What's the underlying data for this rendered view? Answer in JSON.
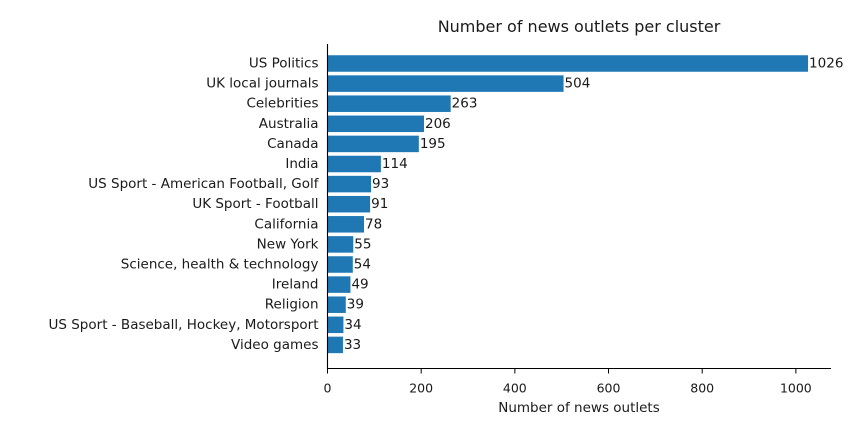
{
  "chart_data": {
    "type": "bar",
    "orientation": "horizontal",
    "title": "Number of news outlets per cluster",
    "xlabel": "Number of news outlets",
    "ylabel": "",
    "categories": [
      "US Politics",
      "UK local journals",
      "Celebrities",
      "Australia",
      "Canada",
      "India",
      "US Sport - American Football, Golf",
      "UK Sport - Football",
      "California",
      "New York",
      "Science, health & technology",
      "Ireland",
      "Religion",
      "US Sport - Baseball, Hockey, Motorsport",
      "Video games"
    ],
    "values": [
      1026,
      504,
      263,
      206,
      195,
      114,
      93,
      91,
      78,
      55,
      54,
      49,
      39,
      34,
      33
    ],
    "xlim": [
      0,
      1075
    ],
    "xticks": [
      0,
      200,
      400,
      600,
      800,
      1000
    ],
    "bar_color": "#1f77b4",
    "grid": false,
    "legend": "none"
  }
}
